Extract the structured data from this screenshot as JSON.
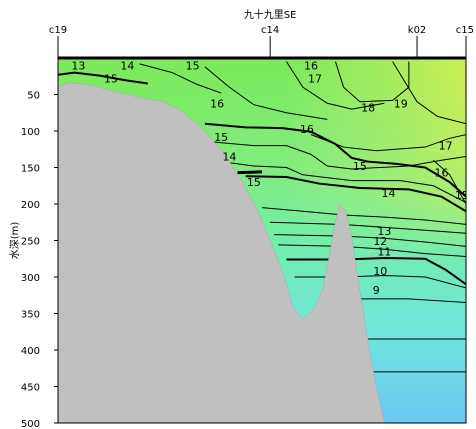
{
  "chart_data": {
    "type": "contour",
    "title": "九十九里SE",
    "ylabel": "水深(m)",
    "stations": [
      "c19",
      "c14",
      "k02",
      "c15"
    ],
    "yticks": [
      50,
      100,
      150,
      200,
      250,
      300,
      350,
      400,
      450,
      500
    ],
    "ylim": [
      0,
      500
    ],
    "xlim": [
      0,
      1
    ],
    "station_x": [
      0,
      0.52,
      0.88,
      1.0
    ],
    "isotherms": [
      9,
      10,
      11,
      12,
      13,
      14,
      15,
      16,
      17,
      18,
      19
    ],
    "contour_labels": [
      {
        "text": "13",
        "x": 0.05,
        "y": 10
      },
      {
        "text": "14",
        "x": 0.17,
        "y": 10
      },
      {
        "text": "15",
        "x": 0.13,
        "y": 28
      },
      {
        "text": "15",
        "x": 0.33,
        "y": 10
      },
      {
        "text": "16",
        "x": 0.39,
        "y": 62
      },
      {
        "text": "16",
        "x": 0.62,
        "y": 10
      },
      {
        "text": "17",
        "x": 0.63,
        "y": 28
      },
      {
        "text": "18",
        "x": 0.76,
        "y": 68
      },
      {
        "text": "19",
        "x": 0.84,
        "y": 62
      },
      {
        "text": "15",
        "x": 0.4,
        "y": 108
      },
      {
        "text": "14",
        "x": 0.42,
        "y": 135
      },
      {
        "text": "16",
        "x": 0.61,
        "y": 97
      },
      {
        "text": "15",
        "x": 0.74,
        "y": 148
      },
      {
        "text": "15",
        "x": 0.48,
        "y": 170
      },
      {
        "text": "14",
        "x": 0.81,
        "y": 185
      },
      {
        "text": "16",
        "x": 0.94,
        "y": 157
      },
      {
        "text": "17",
        "x": 0.95,
        "y": 120
      },
      {
        "text": "15",
        "x": 0.99,
        "y": 188
      },
      {
        "text": "13",
        "x": 0.8,
        "y": 237
      },
      {
        "text": "12",
        "x": 0.79,
        "y": 251
      },
      {
        "text": "11",
        "x": 0.8,
        "y": 265
      },
      {
        "text": "10",
        "x": 0.79,
        "y": 292
      },
      {
        "text": "9",
        "x": 0.78,
        "y": 318
      }
    ]
  }
}
